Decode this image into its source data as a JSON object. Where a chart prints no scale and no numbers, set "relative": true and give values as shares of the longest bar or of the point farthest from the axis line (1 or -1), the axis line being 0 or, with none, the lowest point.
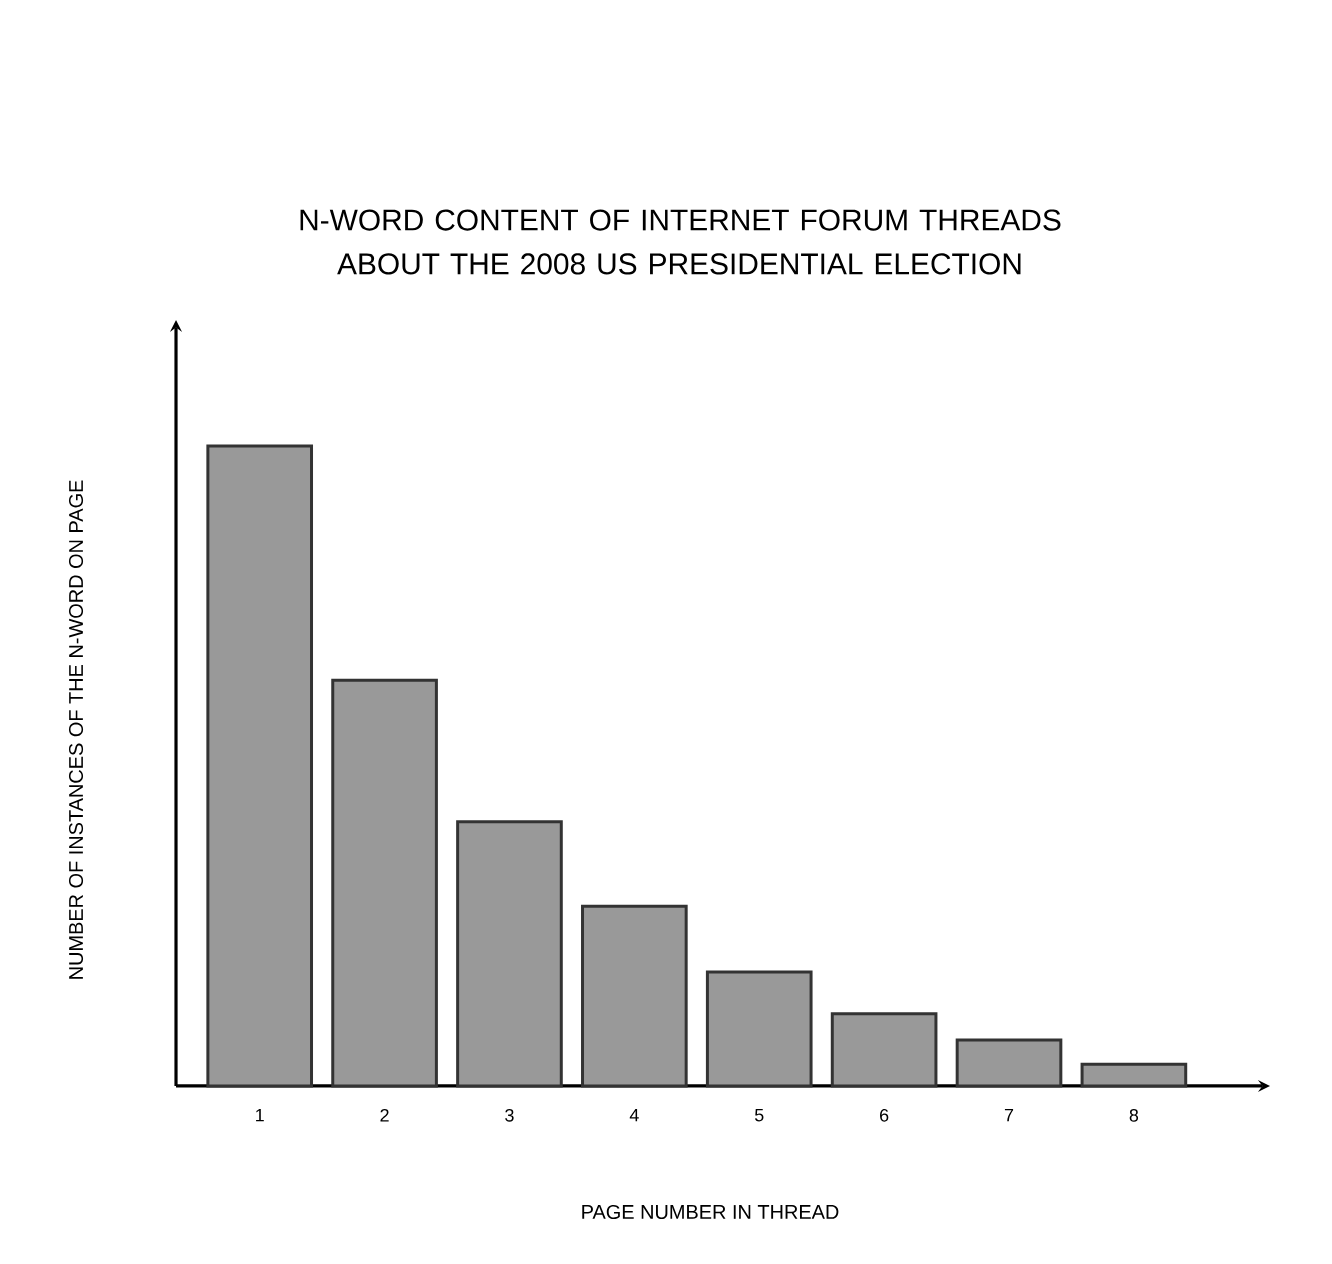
{
  "chart_data": {
    "type": "bar",
    "title": "N-WORD CONTENT OF INTERNET FORUM THREADS ABOUT THE 2008 US PRESIDENTIAL ELECTION",
    "xlabel": "PAGE NUMBER IN THREAD",
    "ylabel": "NUMBER OF INSTANCES OF THE N-WORD ON PAGE",
    "categories": [
      "1",
      "2",
      "3",
      "4",
      "5",
      "6",
      "7",
      "8"
    ],
    "values": [
      1,
      0.634,
      0.413,
      0.281,
      0.178,
      0.113,
      0.072,
      0.034
    ],
    "color": "#999999",
    "relative": true
  }
}
